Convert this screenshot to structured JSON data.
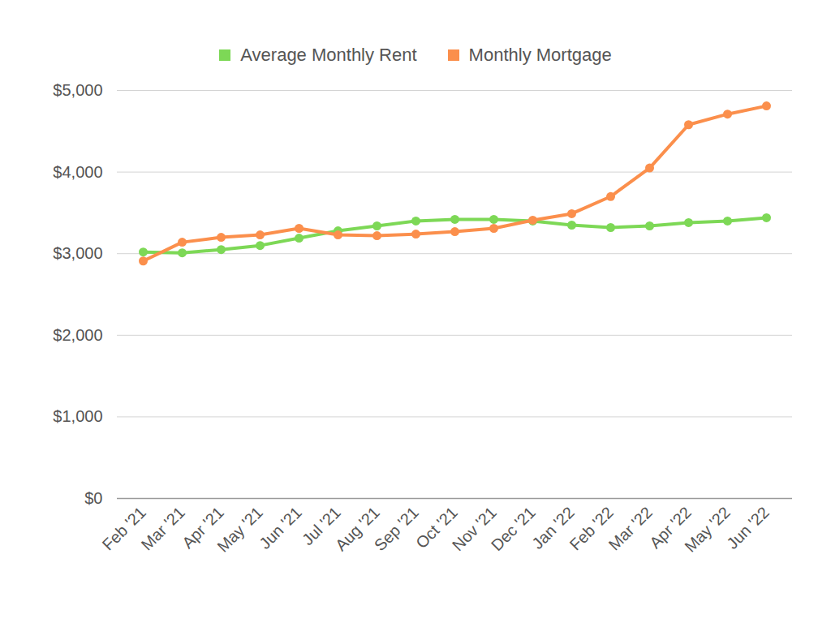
{
  "chart_data": {
    "type": "line",
    "categories": [
      "Feb '21",
      "Mar '21",
      "Apr '21",
      "May '21",
      "Jun '21",
      "Jul '21",
      "Aug '21",
      "Sep '21",
      "Oct '21",
      "Nov '21",
      "Dec '21",
      "Jan '22",
      "Feb '22",
      "Mar '22",
      "Apr '22",
      "May '22",
      "Jun '22"
    ],
    "series": [
      {
        "name": "Average Monthly Rent",
        "color": "#7dd856",
        "values": [
          3020,
          3010,
          3050,
          3100,
          3190,
          3280,
          3340,
          3400,
          3420,
          3420,
          3400,
          3350,
          3320,
          3340,
          3380,
          3400,
          3440
        ]
      },
      {
        "name": "Monthly Mortgage",
        "color": "#fb8f4c",
        "values": [
          2910,
          3140,
          3200,
          3230,
          3310,
          3230,
          3220,
          3240,
          3270,
          3310,
          3410,
          3490,
          3700,
          4050,
          4580,
          4710,
          4810
        ]
      }
    ],
    "ylim": [
      0,
      5000
    ],
    "yticks": [
      {
        "value": 0,
        "label": "$0"
      },
      {
        "value": 1000,
        "label": "$1,000"
      },
      {
        "value": 2000,
        "label": "$2,000"
      },
      {
        "value": 3000,
        "label": "$3,000"
      },
      {
        "value": 4000,
        "label": "$4,000"
      },
      {
        "value": 5000,
        "label": "$5,000"
      }
    ],
    "grid": true,
    "legend": "top",
    "marker": "circle",
    "line_style": "solid"
  }
}
